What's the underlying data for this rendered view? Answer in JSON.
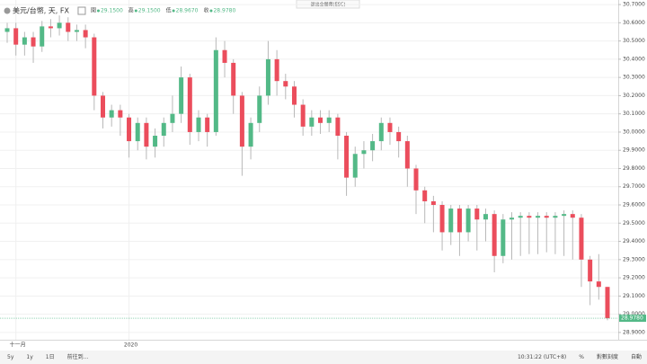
{
  "chart_data": {
    "type": "candlestick",
    "symbol": "美元/台幣, 天, FX",
    "ohlc_header": [
      {
        "label": "開",
        "value": "29.1500"
      },
      {
        "label": "高",
        "value": "29.1500"
      },
      {
        "label": "低",
        "value": "28.9670"
      },
      {
        "label": "收",
        "value": "28.9780"
      }
    ],
    "fullscreen_hint": "退出全螢幕(ESC)",
    "categories": [
      null,
      "十一月",
      null,
      null,
      null,
      null,
      null,
      null,
      null,
      null,
      null,
      null,
      null,
      null,
      "2020",
      null,
      null,
      null,
      null,
      null,
      null,
      null,
      null,
      null,
      null,
      null,
      null,
      null,
      null,
      null,
      null,
      null,
      null,
      null,
      null,
      null,
      null,
      null,
      null,
      null,
      null,
      null,
      null,
      null,
      null,
      null,
      null,
      null,
      null,
      null,
      null,
      null,
      null,
      null,
      null,
      null,
      null,
      null,
      null,
      null,
      null,
      null,
      null,
      null,
      null,
      null,
      null,
      null,
      null,
      null
    ],
    "open": [
      30.55,
      30.57,
      30.48,
      30.52,
      30.47,
      30.58,
      30.57,
      30.6,
      30.55,
      30.56,
      30.52,
      30.2,
      30.08,
      30.12,
      30.08,
      29.95,
      30.05,
      29.92,
      29.98,
      30.05,
      30.1,
      30.3,
      30.0,
      30.08,
      30.0,
      30.45,
      30.38,
      30.2,
      29.92,
      30.05,
      30.2,
      30.4,
      30.28,
      30.25,
      30.15,
      30.03,
      30.08,
      30.05,
      30.08,
      29.98,
      29.75,
      29.88,
      29.9,
      29.95,
      30.05,
      30.0,
      29.95,
      29.8,
      29.68,
      29.62,
      29.6,
      29.45,
      29.58,
      29.45,
      29.58,
      29.52,
      29.55,
      29.32,
      29.52,
      29.53,
      29.54,
      29.53,
      29.54,
      29.53,
      29.54,
      29.55,
      29.53,
      29.3,
      29.18,
      29.15
    ],
    "high": [
      30.6,
      30.6,
      30.55,
      30.55,
      30.61,
      30.62,
      30.64,
      30.63,
      30.59,
      30.59,
      30.54,
      30.22,
      30.15,
      30.15,
      30.1,
      30.08,
      30.08,
      30.02,
      30.08,
      30.2,
      30.36,
      30.32,
      30.12,
      30.1,
      30.52,
      30.5,
      30.4,
      30.22,
      30.08,
      30.25,
      30.5,
      30.45,
      30.32,
      30.28,
      30.18,
      30.12,
      30.12,
      30.12,
      30.1,
      30.0,
      29.92,
      29.95,
      29.99,
      30.08,
      30.08,
      30.03,
      29.98,
      29.82,
      29.7,
      29.65,
      29.62,
      29.6,
      29.6,
      29.6,
      29.6,
      29.58,
      29.57,
      29.55,
      29.56,
      29.56,
      29.56,
      29.56,
      29.56,
      29.56,
      29.57,
      29.57,
      29.55,
      29.32,
      29.33,
      29.15
    ],
    "low": [
      30.49,
      30.42,
      30.42,
      30.38,
      30.44,
      30.52,
      30.53,
      30.5,
      30.5,
      30.46,
      30.12,
      30.02,
      30.03,
      29.98,
      29.86,
      29.9,
      29.85,
      29.86,
      29.92,
      30.0,
      30.05,
      29.93,
      29.95,
      29.92,
      29.98,
      30.3,
      30.1,
      29.76,
      29.85,
      30.0,
      30.15,
      30.2,
      30.18,
      30.08,
      29.98,
      29.98,
      29.99,
      30.0,
      29.85,
      29.65,
      29.7,
      29.8,
      29.84,
      29.9,
      29.93,
      29.86,
      29.7,
      29.55,
      29.5,
      29.45,
      29.35,
      29.38,
      29.32,
      29.4,
      29.35,
      29.4,
      29.23,
      29.28,
      29.3,
      29.32,
      29.33,
      29.33,
      29.34,
      29.33,
      29.32,
      29.3,
      29.15,
      29.05,
      29.08,
      28.967
    ],
    "close": [
      30.57,
      30.48,
      30.52,
      30.47,
      30.58,
      30.57,
      30.6,
      30.55,
      30.56,
      30.52,
      30.2,
      30.08,
      30.12,
      30.08,
      29.95,
      30.05,
      29.92,
      29.98,
      30.05,
      30.1,
      30.3,
      30.0,
      30.08,
      30.0,
      30.45,
      30.38,
      30.2,
      29.92,
      30.05,
      30.2,
      30.4,
      30.28,
      30.25,
      30.15,
      30.03,
      30.08,
      30.05,
      30.08,
      29.98,
      29.75,
      29.88,
      29.9,
      29.95,
      30.05,
      30.0,
      29.95,
      29.8,
      29.68,
      29.62,
      29.6,
      29.45,
      29.58,
      29.45,
      29.58,
      29.52,
      29.55,
      29.32,
      29.52,
      29.53,
      29.54,
      29.53,
      29.54,
      29.53,
      29.54,
      29.55,
      29.53,
      29.3,
      29.18,
      29.15,
      28.978
    ],
    "up_color": "#53b987",
    "down_color": "#eb4d5c",
    "wick_color": "#b8b8b8",
    "ylim": [
      28.86,
      30.725
    ],
    "yticks": [
      {
        "value": 30.7,
        "label": "30.7000"
      },
      {
        "value": 30.6,
        "label": "30.6000"
      },
      {
        "value": 30.5,
        "label": "30.5000"
      },
      {
        "value": 30.4,
        "label": "30.4000"
      },
      {
        "value": 30.3,
        "label": "30.3000"
      },
      {
        "value": 30.2,
        "label": "30.2000"
      },
      {
        "value": 30.1,
        "label": "30.1000"
      },
      {
        "value": 30.0,
        "label": "30.0000"
      },
      {
        "value": 29.9,
        "label": "29.9000"
      },
      {
        "value": 29.8,
        "label": "29.8000"
      },
      {
        "value": 29.7,
        "label": "29.7000"
      },
      {
        "value": 29.6,
        "label": "29.6000"
      },
      {
        "value": 29.5,
        "label": "29.5000"
      },
      {
        "value": 29.4,
        "label": "29.4000"
      },
      {
        "value": 29.3,
        "label": "29.3000"
      },
      {
        "value": 29.2,
        "label": "29.2000"
      },
      {
        "value": 29.1,
        "label": "29.1000"
      },
      {
        "value": 29.0,
        "label": "29.0000"
      },
      {
        "value": 28.9,
        "label": "28.9000"
      }
    ],
    "last_price": {
      "value": 28.978,
      "label": "28.9780"
    },
    "grid": true
  },
  "toolbar": {
    "left": [
      "5y",
      "1y",
      "1日",
      "前往到..."
    ],
    "right": [
      "10:31:22 (UTC+8)",
      "%",
      "對數刻度",
      "自動"
    ]
  }
}
